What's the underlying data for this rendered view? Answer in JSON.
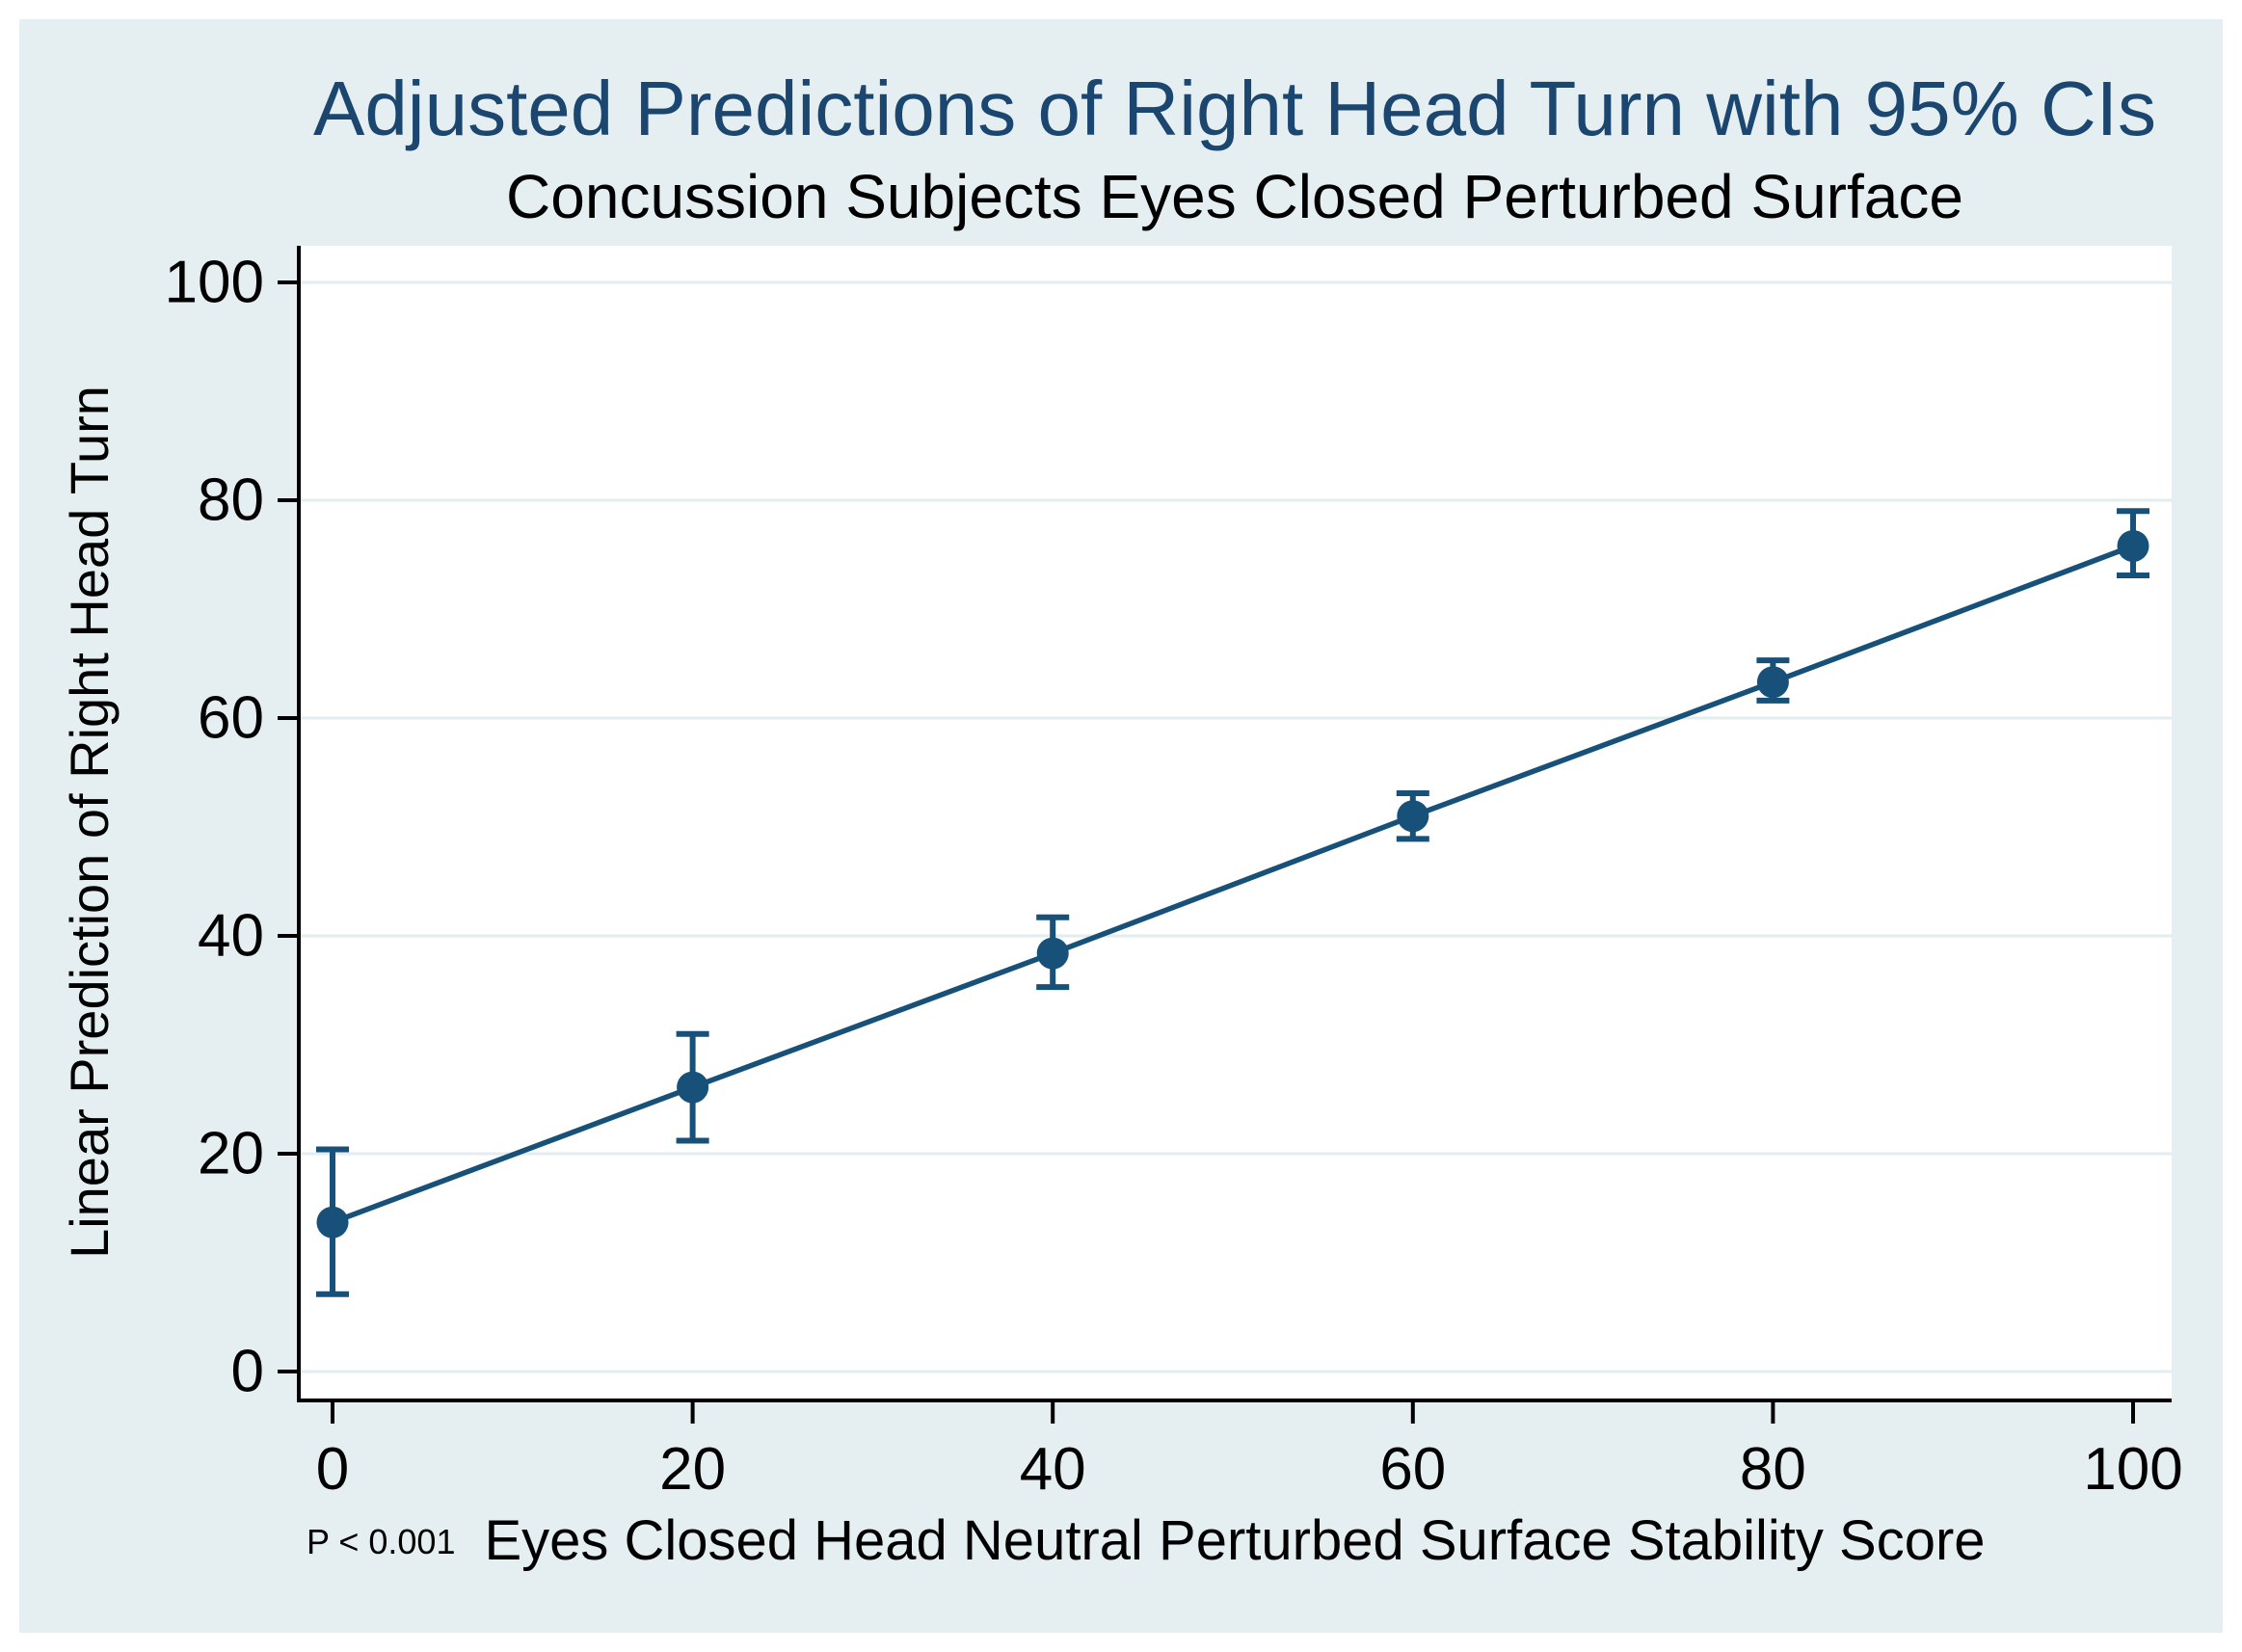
{
  "chart_data": {
    "type": "line",
    "title": "Adjusted Predictions of Right Head Turn with 95% CIs",
    "subtitle": "Concussion Subjects Eyes Closed Perturbed Surface",
    "xlabel": "Eyes Closed Head Neutral Perturbed Surface Stability Score",
    "ylabel": "Linear Prediction of Right Head Turn",
    "p_value_note": "P < 0.001",
    "x": [
      0,
      20,
      40,
      60,
      80,
      100
    ],
    "y": [
      13.7,
      26.1,
      38.4,
      51.0,
      63.3,
      75.8
    ],
    "ci_low": [
      7.1,
      21.2,
      35.3,
      48.9,
      61.6,
      73.1
    ],
    "ci_high": [
      20.4,
      31.0,
      41.7,
      53.1,
      65.3,
      79.0
    ],
    "xticks": [
      0,
      20,
      40,
      60,
      80,
      100
    ],
    "yticks": [
      0,
      20,
      40,
      60,
      80,
      100
    ],
    "xlim": [
      -2,
      102
    ],
    "ylim": [
      -2.6,
      103.4
    ],
    "grid": "horizontal",
    "legend": "none"
  },
  "colors": {
    "page_bg": "#ffffff",
    "panel_bg": "#e5eff1",
    "plot_bg": "#ffffff",
    "gridline": "#e1edef",
    "axis": "#000000",
    "tick_text": "#000000",
    "title": "#1b466f",
    "subtitle": "#000000",
    "series": "#175079"
  }
}
